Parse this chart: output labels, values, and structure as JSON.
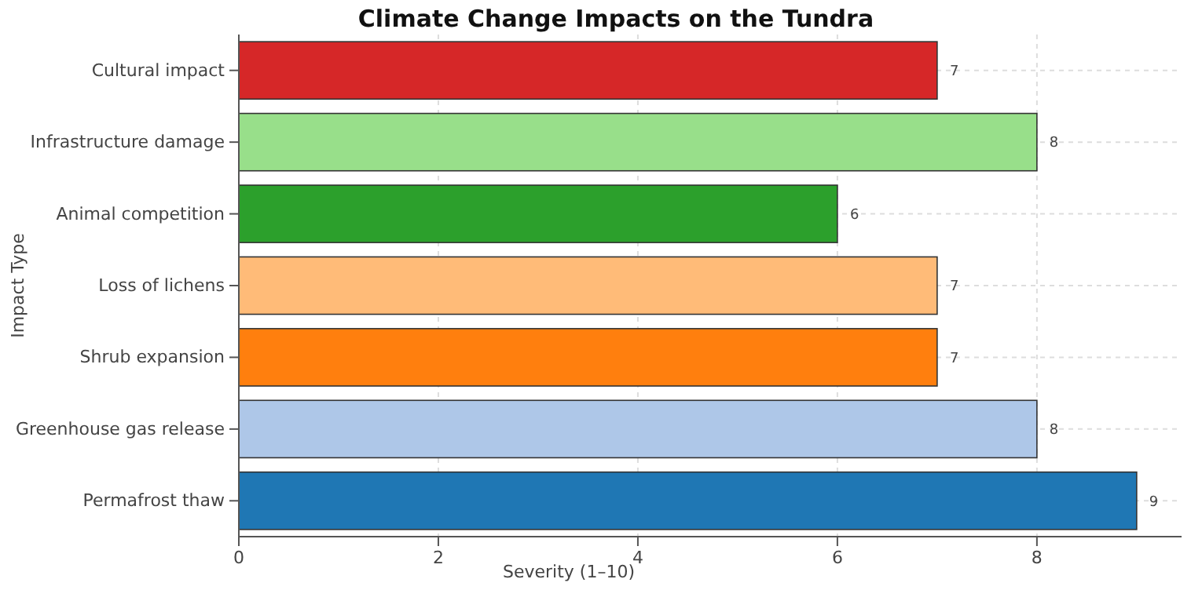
{
  "chart_data": {
    "type": "bar",
    "orientation": "horizontal",
    "title": "Climate Change Impacts on the Tundra",
    "xlabel": "Severity (1–10)",
    "ylabel": "Impact Type",
    "categories": [
      "Cultural impact",
      "Infrastructure damage",
      "Animal competition",
      "Loss of lichens",
      "Shrub expansion",
      "Greenhouse gas release",
      "Permafrost thaw"
    ],
    "values": [
      7,
      8,
      6,
      7,
      7,
      8,
      9
    ],
    "colors": [
      "#d62728",
      "#98df8a",
      "#2ca02c",
      "#ffbb78",
      "#ff7f0e",
      "#aec7e8",
      "#1f77b4"
    ],
    "xlim": [
      0,
      9.45
    ],
    "xticks": [
      0,
      2,
      4,
      6,
      8
    ],
    "grid": true,
    "data_labels": true
  }
}
